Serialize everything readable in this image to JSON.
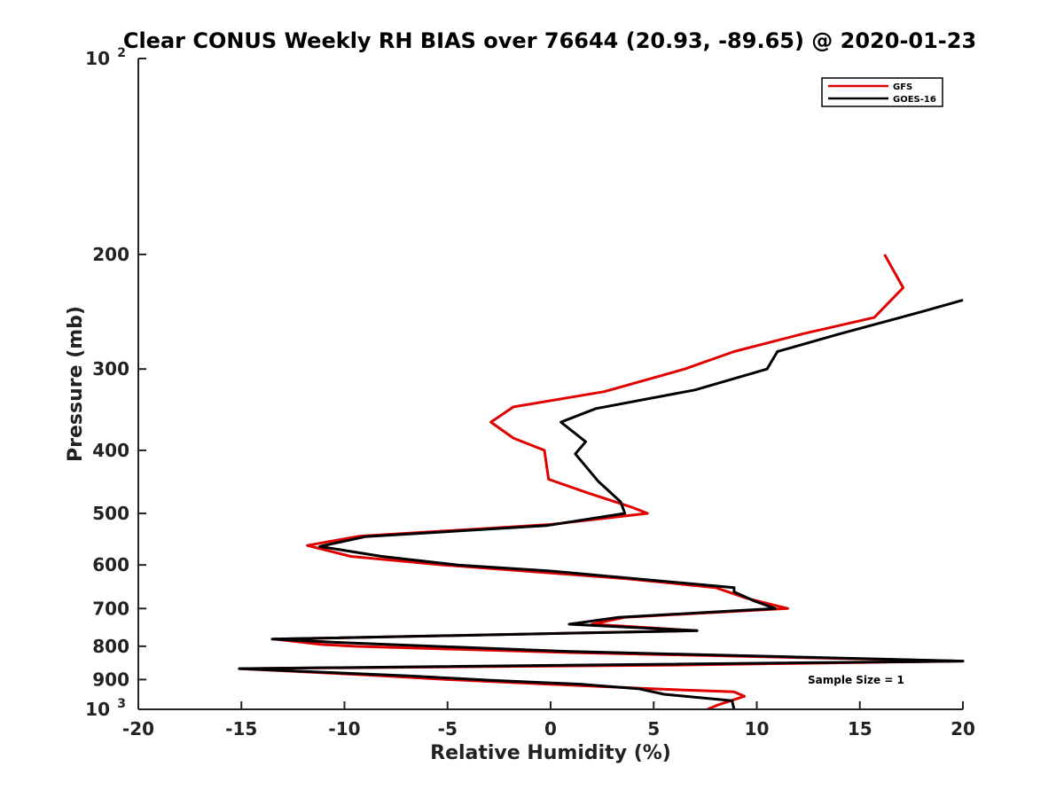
{
  "chart_data": {
    "type": "line",
    "title": "Clear CONUS Weekly RH BIAS over 76644 (20.93, -89.65) @ 2020-01-23",
    "xlabel": "Relative Humidity (%)",
    "ylabel": "Pressure (mb)",
    "xlim": [
      -20,
      20
    ],
    "ylim": [
      100,
      1000
    ],
    "yscale": "log",
    "y_reversed": true,
    "x_ticks": [
      "-20",
      "-15",
      "-10",
      "-5",
      "0",
      "5",
      "10",
      "15",
      "20"
    ],
    "y_ticks": [
      {
        "value": 100,
        "base": "10",
        "exp": "2"
      },
      {
        "value": 200,
        "label": "200"
      },
      {
        "value": 300,
        "label": "300"
      },
      {
        "value": 400,
        "label": "400"
      },
      {
        "value": 500,
        "label": "500"
      },
      {
        "value": 600,
        "label": "600"
      },
      {
        "value": 700,
        "label": "700"
      },
      {
        "value": 800,
        "label": "800"
      },
      {
        "value": 900,
        "label": "900"
      },
      {
        "value": 1000,
        "base": "10",
        "exp": "3"
      }
    ],
    "legend_position": "top-right",
    "annotation": "Sample Size = 1",
    "series": [
      {
        "name": "GFS",
        "color": "#e00000",
        "points": [
          [
            16.2,
            200
          ],
          [
            17.1,
            225
          ],
          [
            15.7,
            250
          ],
          [
            12.2,
            265
          ],
          [
            8.9,
            282
          ],
          [
            6.5,
            300
          ],
          [
            2.6,
            325
          ],
          [
            -1.8,
            343
          ],
          [
            -2.9,
            362
          ],
          [
            -1.8,
            383
          ],
          [
            -0.3,
            400
          ],
          [
            -0.1,
            443
          ],
          [
            1.8,
            465
          ],
          [
            4.0,
            490
          ],
          [
            4.7,
            500
          ],
          [
            0.0,
            520
          ],
          [
            -9.3,
            542
          ],
          [
            -11.8,
            560
          ],
          [
            -9.7,
            582
          ],
          [
            -5.2,
            600
          ],
          [
            3.7,
            630
          ],
          [
            8.0,
            650
          ],
          [
            9.5,
            675
          ],
          [
            11.5,
            700
          ],
          [
            3.6,
            722
          ],
          [
            2.0,
            740
          ],
          [
            7.1,
            757
          ],
          [
            -13.4,
            780
          ],
          [
            -11.1,
            795
          ],
          [
            -9.5,
            800
          ],
          [
            1.0,
            818
          ],
          [
            20.0,
            843
          ],
          [
            6.0,
            855
          ],
          [
            -15.1,
            866
          ],
          [
            -9.0,
            885
          ],
          [
            -5.0,
            900
          ],
          [
            0.0,
            915
          ],
          [
            5.0,
            930
          ],
          [
            8.9,
            940
          ],
          [
            9.4,
            955
          ],
          [
            8.1,
            985
          ],
          [
            7.6,
            1000
          ]
        ]
      },
      {
        "name": "GOES-16",
        "color": "#000000",
        "points": [
          [
            20.0,
            235
          ],
          [
            18.0,
            245
          ],
          [
            14.0,
            265
          ],
          [
            11.0,
            282
          ],
          [
            10.5,
            300
          ],
          [
            7.0,
            323
          ],
          [
            2.2,
            345
          ],
          [
            0.5,
            362
          ],
          [
            1.7,
            388
          ],
          [
            1.2,
            405
          ],
          [
            2.3,
            446
          ],
          [
            3.4,
            480
          ],
          [
            3.6,
            500
          ],
          [
            -0.2,
            522
          ],
          [
            -9.0,
            543
          ],
          [
            -11.2,
            562
          ],
          [
            -8.2,
            582
          ],
          [
            -4.5,
            600
          ],
          [
            0.0,
            613
          ],
          [
            8.9,
            650
          ],
          [
            8.9,
            660
          ],
          [
            9.9,
            682
          ],
          [
            10.9,
            700
          ],
          [
            3.3,
            722
          ],
          [
            0.9,
            740
          ],
          [
            7.1,
            757
          ],
          [
            -13.5,
            780
          ],
          [
            -10.0,
            790
          ],
          [
            1.0,
            815
          ],
          [
            20.0,
            843
          ],
          [
            -15.1,
            866
          ],
          [
            -7.0,
            888
          ],
          [
            -3.0,
            902
          ],
          [
            1.5,
            915
          ],
          [
            4.3,
            930
          ],
          [
            5.5,
            948
          ],
          [
            8.8,
            970
          ],
          [
            8.9,
            1000
          ]
        ]
      }
    ]
  }
}
